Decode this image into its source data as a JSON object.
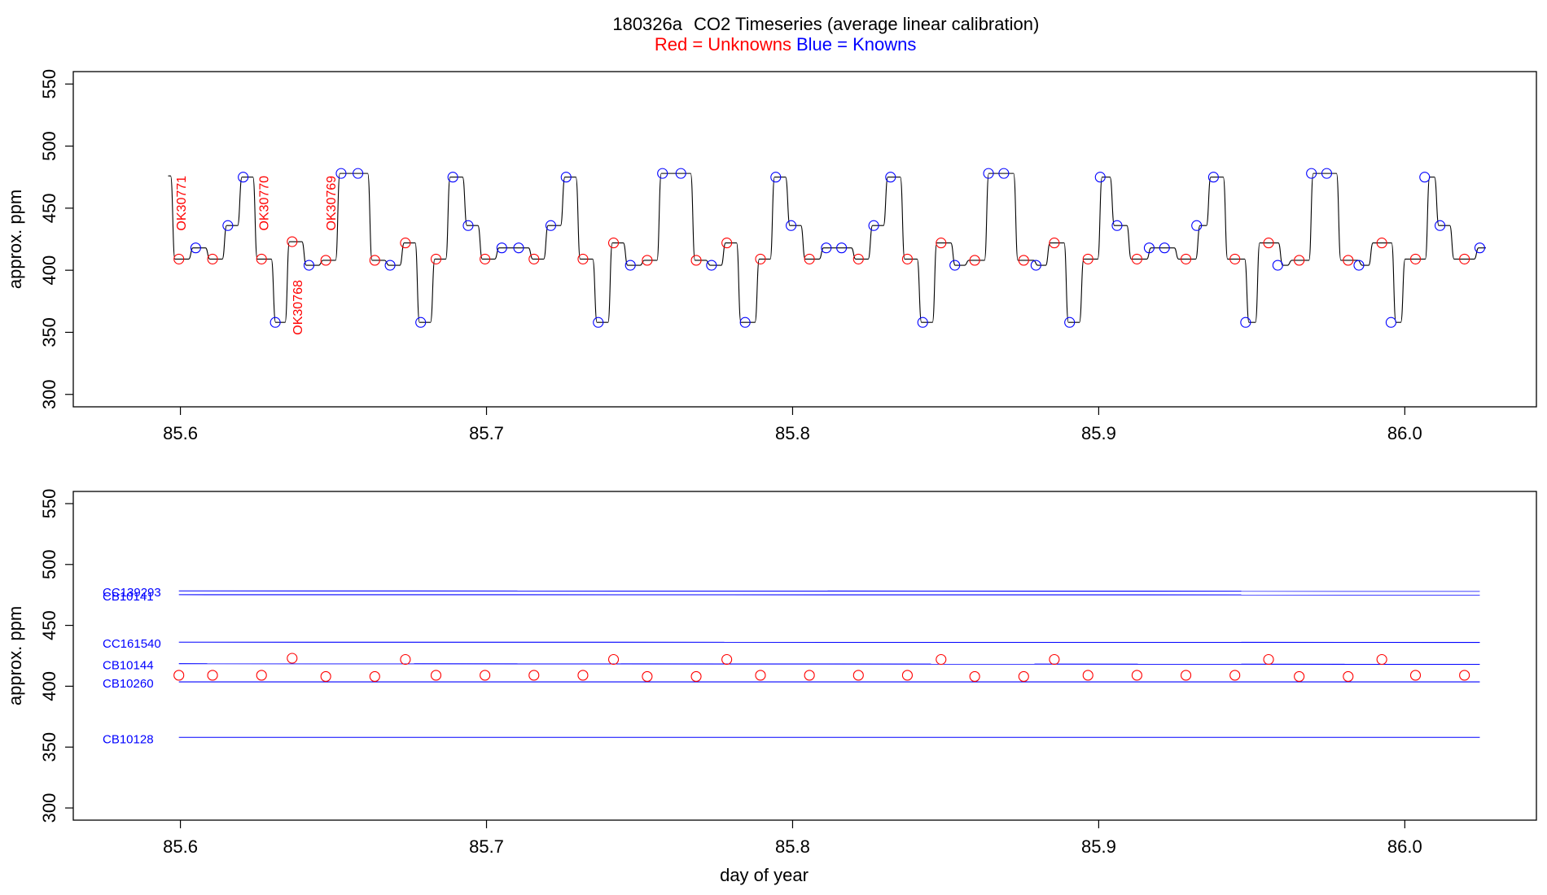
{
  "title": {
    "prefix": "180326a",
    "main": "CO2 Timeseries (average linear calibration)",
    "legend_red": "Red = Unknowns",
    "legend_blue": "Blue = Knowns"
  },
  "colors": {
    "unknown": "#ff0000",
    "known": "#0000ff",
    "trace": "#000000",
    "label_red": "#ff0000"
  },
  "chart_data": [
    {
      "type": "line",
      "panel": "top",
      "ylabel": "approx. ppm",
      "xlabel": "",
      "xlim": [
        85.565,
        86.043
      ],
      "ylim": [
        290,
        560
      ],
      "xticks": [
        "85.6",
        "85.7",
        "85.8",
        "85.9",
        "86.0"
      ],
      "xtick_values": [
        85.6,
        85.7,
        85.8,
        85.9,
        86.0
      ],
      "yticks": [
        "300",
        "350",
        "400",
        "450",
        "500",
        "550"
      ],
      "ytick_values": [
        300,
        350,
        400,
        450,
        500,
        550
      ],
      "trace_start": {
        "x": 85.596,
        "y": 476
      },
      "series": [
        {
          "name": "Unknowns",
          "points": [
            [
              85.5995,
              409
            ],
            [
              85.6105,
              409
            ],
            [
              85.6265,
              409
            ],
            [
              85.6365,
              423
            ],
            [
              85.6475,
              408
            ],
            [
              85.6635,
              408
            ],
            [
              85.6735,
              422
            ],
            [
              85.6835,
              409
            ],
            [
              85.6995,
              409
            ],
            [
              85.7155,
              409
            ],
            [
              85.7315,
              409
            ],
            [
              85.7415,
              422
            ],
            [
              85.7525,
              408
            ],
            [
              85.7685,
              408
            ],
            [
              85.7785,
              422
            ],
            [
              85.7895,
              409
            ],
            [
              85.8055,
              409
            ],
            [
              85.8215,
              409
            ],
            [
              85.8375,
              409
            ],
            [
              85.8485,
              422
            ],
            [
              85.8595,
              408
            ],
            [
              85.8755,
              408
            ],
            [
              85.8855,
              422
            ],
            [
              85.8965,
              409
            ],
            [
              85.9125,
              409
            ],
            [
              85.9285,
              409
            ],
            [
              85.9445,
              409
            ],
            [
              85.9555,
              422
            ],
            [
              85.9655,
              408
            ],
            [
              85.9815,
              408
            ],
            [
              85.9925,
              422
            ],
            [
              86.0035,
              409
            ],
            [
              86.0195,
              409
            ]
          ]
        },
        {
          "name": "Knowns",
          "points": [
            [
              85.605,
              418
            ],
            [
              85.6155,
              436
            ],
            [
              85.6205,
              475
            ],
            [
              85.631,
              358
            ],
            [
              85.642,
              404
            ],
            [
              85.6525,
              478
            ],
            [
              85.658,
              478
            ],
            [
              85.6685,
              404
            ],
            [
              85.6785,
              358
            ],
            [
              85.689,
              475
            ],
            [
              85.694,
              436
            ],
            [
              85.705,
              418
            ],
            [
              85.7105,
              418
            ],
            [
              85.721,
              436
            ],
            [
              85.726,
              475
            ],
            [
              85.7365,
              358
            ],
            [
              85.747,
              404
            ],
            [
              85.7575,
              478
            ],
            [
              85.7635,
              478
            ],
            [
              85.7735,
              404
            ],
            [
              85.7845,
              358
            ],
            [
              85.7945,
              475
            ],
            [
              85.7995,
              436
            ],
            [
              85.811,
              418
            ],
            [
              85.816,
              418
            ],
            [
              85.8265,
              436
            ],
            [
              85.832,
              475
            ],
            [
              85.8425,
              358
            ],
            [
              85.853,
              404
            ],
            [
              85.864,
              478
            ],
            [
              85.869,
              478
            ],
            [
              85.8795,
              404
            ],
            [
              85.8905,
              358
            ],
            [
              85.9005,
              475
            ],
            [
              85.906,
              436
            ],
            [
              85.9165,
              418
            ],
            [
              85.9215,
              418
            ],
            [
              85.932,
              436
            ],
            [
              85.9375,
              475
            ],
            [
              85.948,
              358
            ],
            [
              85.9585,
              404
            ],
            [
              85.9695,
              478
            ],
            [
              85.9745,
              478
            ],
            [
              85.985,
              404
            ],
            [
              85.9955,
              358
            ],
            [
              86.0065,
              475
            ],
            [
              86.0115,
              436
            ],
            [
              86.0245,
              418
            ]
          ]
        }
      ],
      "annotations": [
        {
          "text": "OK30771",
          "x": 85.6005,
          "y": 454,
          "color": "#ff0000"
        },
        {
          "text": "OK30770",
          "x": 85.6275,
          "y": 454,
          "color": "#ff0000"
        },
        {
          "text": "OK30769",
          "x": 85.6495,
          "y": 454,
          "color": "#ff0000"
        },
        {
          "text": "OK30768",
          "x": 85.6385,
          "y": 370,
          "color": "#ff0000"
        }
      ]
    },
    {
      "type": "scatter",
      "panel": "bottom",
      "ylabel": "approx. ppm",
      "xlabel": "day of year",
      "xlim": [
        85.565,
        86.043
      ],
      "ylim": [
        290,
        560
      ],
      "xticks": [
        "85.6",
        "85.7",
        "85.8",
        "85.9",
        "86.0"
      ],
      "xtick_values": [
        85.6,
        85.7,
        85.8,
        85.9,
        86.0
      ],
      "yticks": [
        "300",
        "350",
        "400",
        "450",
        "500",
        "550"
      ],
      "ytick_values": [
        300,
        350,
        400,
        450,
        500,
        550
      ],
      "reference_lines": [
        {
          "name": "CC139293",
          "y_start": 478.3,
          "y_end": 478.0
        },
        {
          "name": "CB10141",
          "y_start": 475.2,
          "y_end": 475.0
        },
        {
          "name": "CC161540",
          "y_start": 436.2,
          "y_end": 436.0
        },
        {
          "name": "CB10144",
          "y_start": 418.5,
          "y_end": 418.0
        },
        {
          "name": "CB10260",
          "y_start": 403.6,
          "y_end": 403.6
        },
        {
          "name": "CB10128",
          "y_start": 358.0,
          "y_end": 358.0
        }
      ],
      "line_x_range": [
        85.5995,
        86.0245
      ],
      "series": [
        {
          "name": "Unknowns",
          "points": [
            [
              85.5995,
              409
            ],
            [
              85.6105,
              409
            ],
            [
              85.6265,
              409
            ],
            [
              85.6365,
              423
            ],
            [
              85.6475,
              408
            ],
            [
              85.6635,
              408
            ],
            [
              85.6735,
              422
            ],
            [
              85.6835,
              409
            ],
            [
              85.6995,
              409
            ],
            [
              85.7155,
              409
            ],
            [
              85.7315,
              409
            ],
            [
              85.7415,
              422
            ],
            [
              85.7525,
              408
            ],
            [
              85.7685,
              408
            ],
            [
              85.7785,
              422
            ],
            [
              85.7895,
              409
            ],
            [
              85.8055,
              409
            ],
            [
              85.8215,
              409
            ],
            [
              85.8375,
              409
            ],
            [
              85.8485,
              422
            ],
            [
              85.8595,
              408
            ],
            [
              85.8755,
              408
            ],
            [
              85.8855,
              422
            ],
            [
              85.8965,
              409
            ],
            [
              85.9125,
              409
            ],
            [
              85.9285,
              409
            ],
            [
              85.9445,
              409
            ],
            [
              85.9555,
              422
            ],
            [
              85.9655,
              408
            ],
            [
              85.9815,
              408
            ],
            [
              85.9925,
              422
            ],
            [
              86.0035,
              409
            ],
            [
              86.0195,
              409
            ]
          ]
        }
      ]
    }
  ]
}
